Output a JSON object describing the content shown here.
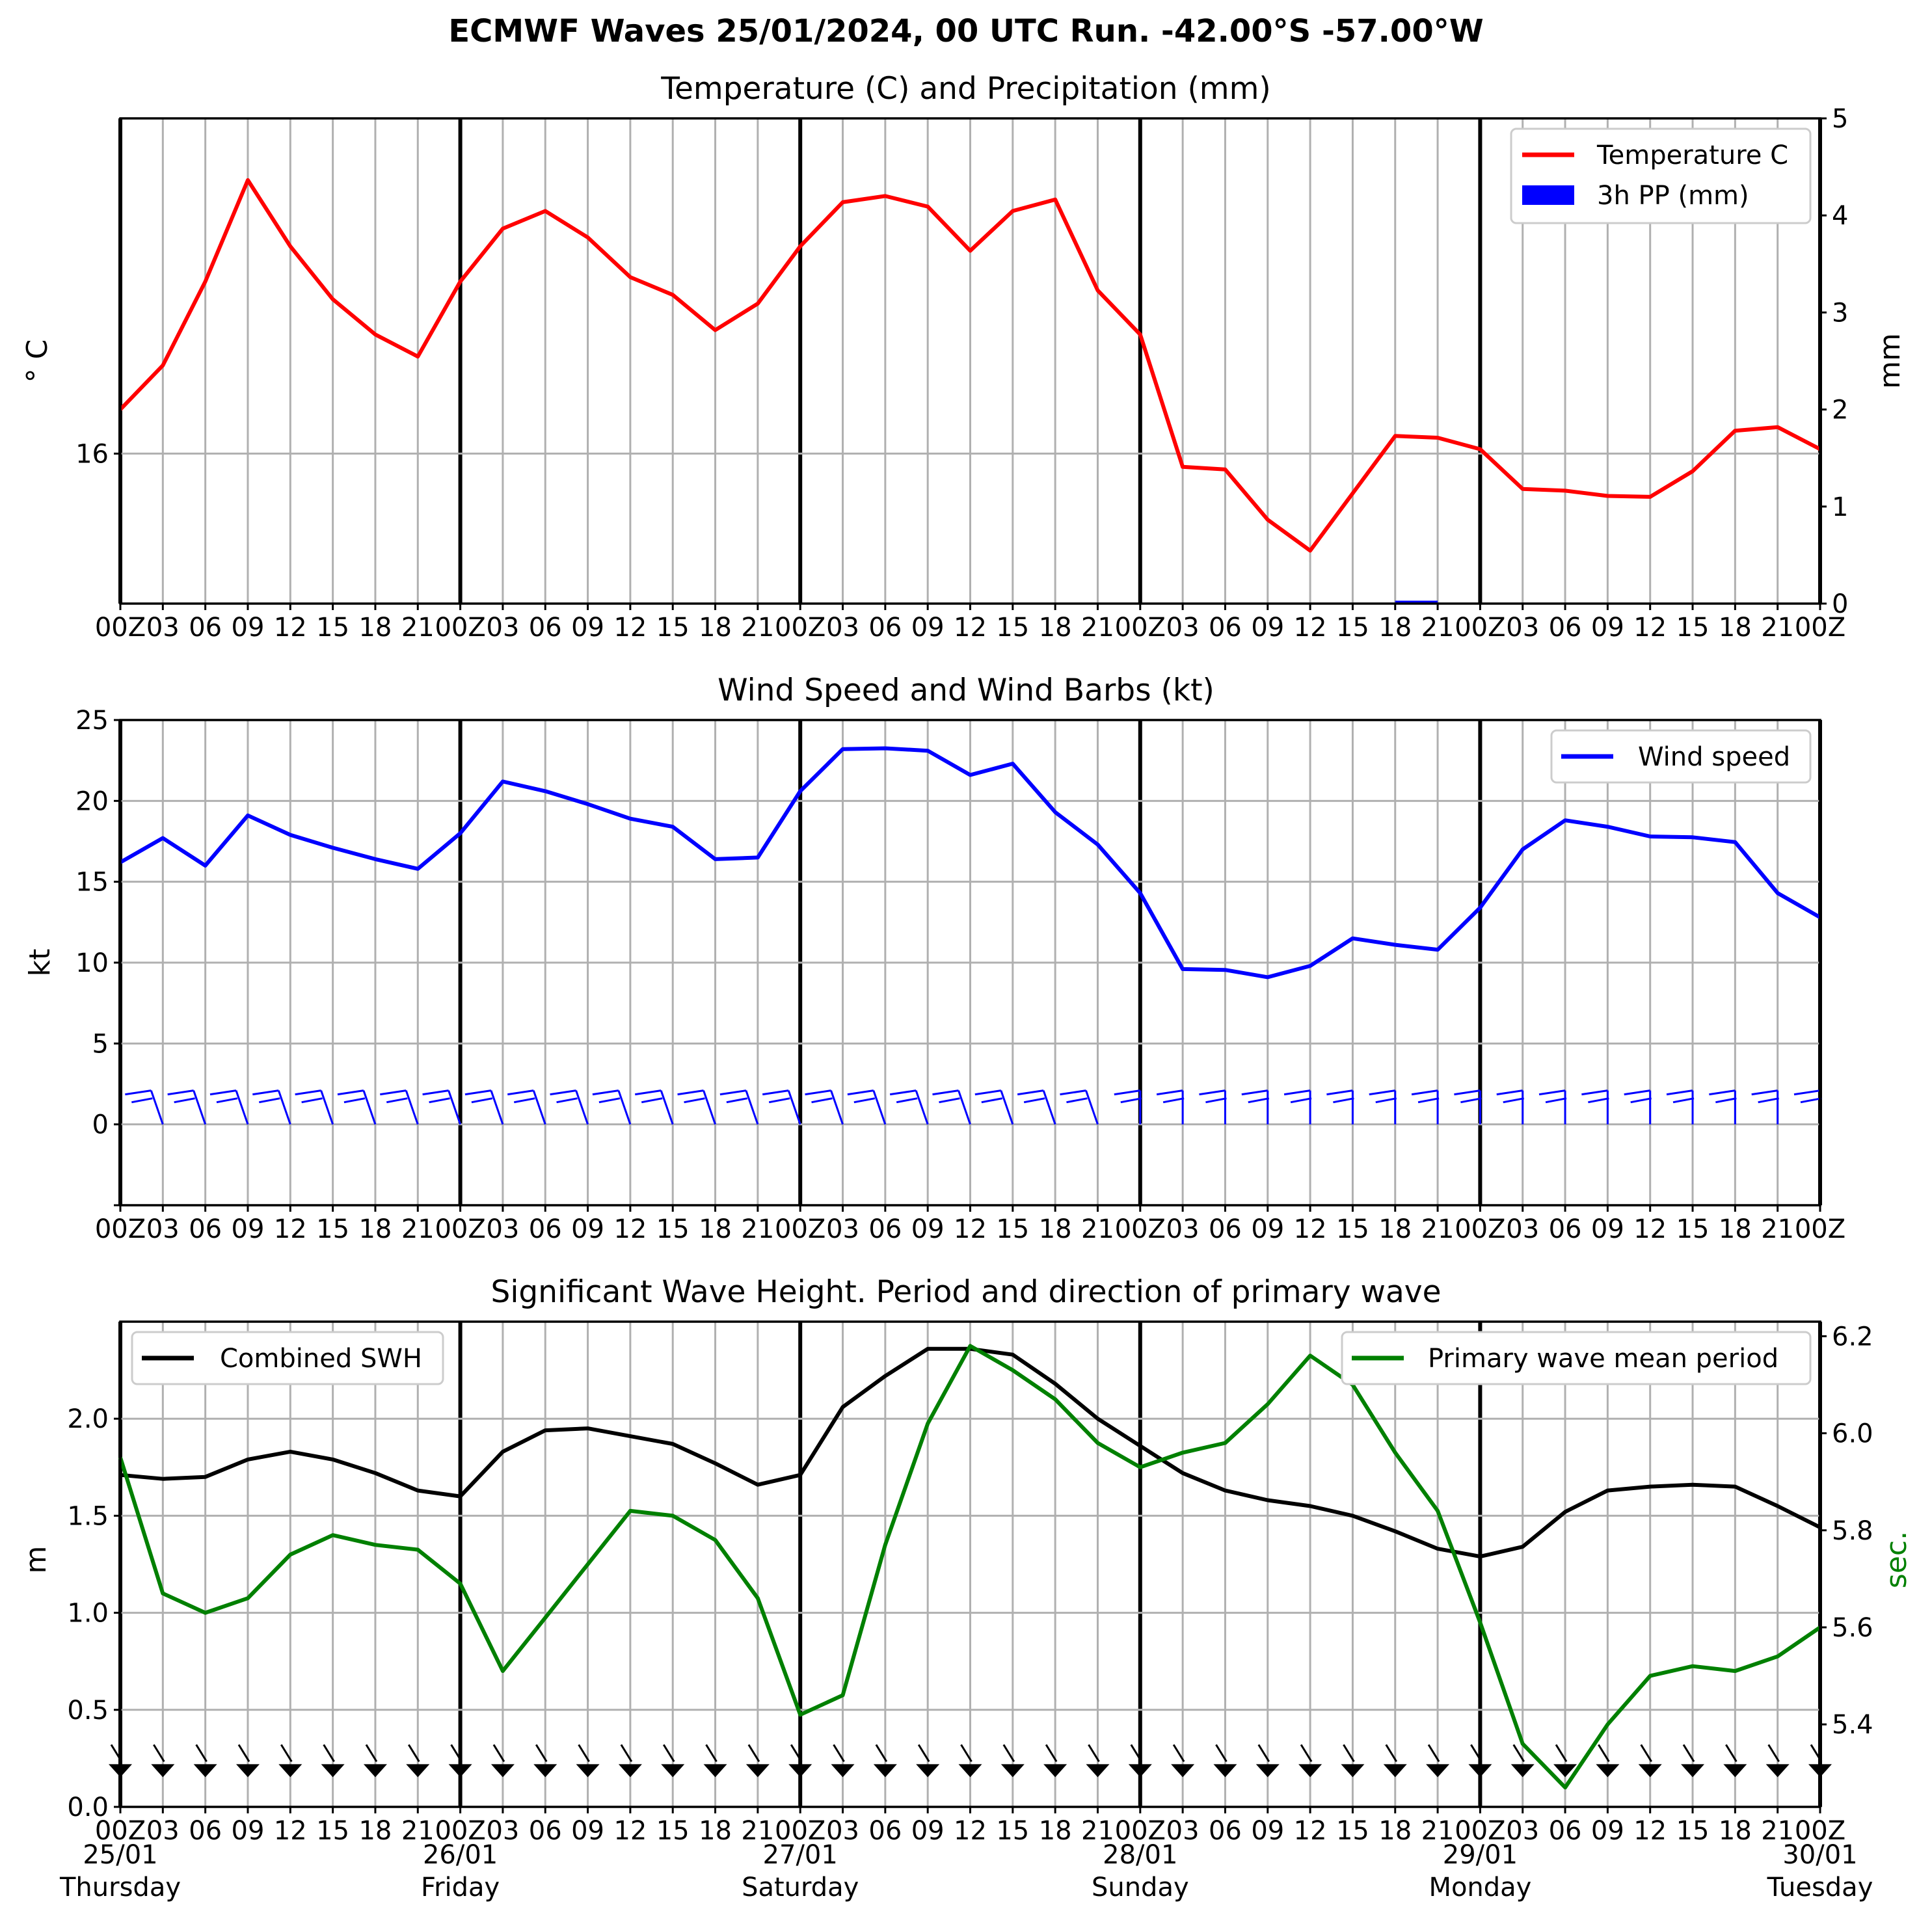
{
  "figure": {
    "title": "ECMWF Waves 25/01/2024, 00 UTC Run. -42.00°S -57.00°W"
  },
  "hour_ticks": [
    "00Z",
    "03",
    "06",
    "09",
    "12",
    "15",
    "18",
    "21",
    "00Z",
    "03",
    "06",
    "09",
    "12",
    "15",
    "18",
    "21",
    "00Z",
    "03",
    "06",
    "09",
    "12",
    "15",
    "18",
    "21",
    "00Z",
    "03",
    "06",
    "09",
    "12",
    "15",
    "18",
    "21",
    "00Z",
    "03",
    "06",
    "09",
    "12",
    "15",
    "18",
    "21",
    "00Z"
  ],
  "day_labels": [
    {
      "date": "25/01",
      "day": "Thursday"
    },
    {
      "date": "26/01",
      "day": "Friday"
    },
    {
      "date": "27/01",
      "day": "Saturday"
    },
    {
      "date": "28/01",
      "day": "Sunday"
    },
    {
      "date": "29/01",
      "day": "Monday"
    },
    {
      "date": "30/01",
      "day": "Tuesday"
    }
  ],
  "panels": {
    "temp": {
      "title": "Temperature (C) and Precipitation (mm)",
      "ylabel": "° C",
      "y2label": "mm",
      "legend": [
        "Temperature C",
        "3h PP (mm)"
      ]
    },
    "wind": {
      "title": "Wind Speed and Wind Barbs (kt)",
      "ylabel": "kt",
      "legend": [
        "Wind speed"
      ]
    },
    "wave": {
      "title": "Significant Wave Height. Period and direction of primary wave",
      "ylabel": "m",
      "y2label": "sec.",
      "legend_left": [
        "Combined SWH"
      ],
      "legend_right": [
        "Primary wave mean period"
      ]
    }
  },
  "colors": {
    "temperature": "#ff0000",
    "precip": "#0000ff",
    "wind": "#0000ff",
    "swh": "#000000",
    "period": "#008000"
  },
  "chart_data": [
    {
      "type": "line",
      "title": "Temperature (C) and Precipitation (mm)",
      "x_hours": [
        0,
        3,
        6,
        9,
        12,
        15,
        18,
        21,
        24,
        27,
        30,
        33,
        36,
        39,
        42,
        45,
        48,
        51,
        54,
        57,
        60,
        63,
        66,
        69,
        72,
        75,
        78,
        81,
        84,
        87,
        90,
        93,
        96,
        99,
        102,
        105,
        108,
        111,
        114,
        117,
        120
      ],
      "ylabel": "° C",
      "y_ticks": [
        16
      ],
      "ylim": [
        14.3,
        19.8
      ],
      "series": [
        {
          "name": "Temperature C",
          "axis": "left",
          "values": [
            16.5,
            17.0,
            17.95,
            19.1,
            18.35,
            17.75,
            17.35,
            17.1,
            17.95,
            18.55,
            18.75,
            18.45,
            18.0,
            17.8,
            17.4,
            17.7,
            18.35,
            18.85,
            18.92,
            18.8,
            18.3,
            18.75,
            18.88,
            17.85,
            17.35,
            15.85,
            15.82,
            15.25,
            14.9,
            15.55,
            16.2,
            16.18,
            16.05,
            15.6,
            15.58,
            15.52,
            15.51,
            15.8,
            16.26,
            16.3,
            16.05
          ]
        },
        {
          "name": "3h PP (mm)",
          "axis": "right",
          "type": "bar",
          "values": [
            0,
            0,
            0,
            0,
            0,
            0,
            0,
            0,
            0,
            0,
            0,
            0,
            0,
            0,
            0,
            0,
            0,
            0,
            0,
            0,
            0,
            0,
            0,
            0,
            0,
            0.01,
            0,
            0,
            0,
            0,
            0.03,
            0,
            0,
            0,
            0,
            0,
            0,
            0,
            0,
            0,
            0
          ]
        }
      ],
      "y2label": "mm",
      "y2lim": [
        0,
        5
      ],
      "y2_ticks": [
        0,
        1,
        2,
        3,
        4,
        5
      ]
    },
    {
      "type": "line",
      "title": "Wind Speed and Wind Barbs (kt)",
      "x_hours": [
        0,
        3,
        6,
        9,
        12,
        15,
        18,
        21,
        24,
        27,
        30,
        33,
        36,
        39,
        42,
        45,
        48,
        51,
        54,
        57,
        60,
        63,
        66,
        69,
        72,
        75,
        78,
        81,
        84,
        87,
        90,
        93,
        96,
        99,
        102,
        105,
        108,
        111,
        114,
        117,
        120
      ],
      "ylabel": "kt",
      "ylim": [
        -5,
        25
      ],
      "y_ticks": [
        0,
        5,
        10,
        15,
        20,
        25
      ],
      "series": [
        {
          "name": "Wind speed",
          "values": [
            16.2,
            17.7,
            16.0,
            19.1,
            17.9,
            17.1,
            16.4,
            15.8,
            18.0,
            21.2,
            20.6,
            19.8,
            18.9,
            18.4,
            16.4,
            16.5,
            20.6,
            23.2,
            23.25,
            23.1,
            21.6,
            22.3,
            19.3,
            17.3,
            14.3,
            9.6,
            9.55,
            9.1,
            9.8,
            11.5,
            11.1,
            10.8,
            13.4,
            17.0,
            18.8,
            18.4,
            17.8,
            17.75,
            17.45,
            14.3,
            12.8
          ]
        }
      ],
      "barbs": {
        "y": 0,
        "count": 41
      }
    },
    {
      "type": "line",
      "title": "Significant Wave Height. Period and direction of primary wave",
      "x_hours": [
        0,
        3,
        6,
        9,
        12,
        15,
        18,
        21,
        24,
        27,
        30,
        33,
        36,
        39,
        42,
        45,
        48,
        51,
        54,
        57,
        60,
        63,
        66,
        69,
        72,
        75,
        78,
        81,
        84,
        87,
        90,
        93,
        96,
        99,
        102,
        105,
        108,
        111,
        114,
        117,
        120
      ],
      "ylabel": "m",
      "ylim": [
        0,
        2.5
      ],
      "y_ticks": [
        0.0,
        0.5,
        1.0,
        1.5,
        2.0
      ],
      "series": [
        {
          "name": "Combined SWH",
          "axis": "left",
          "values": [
            1.71,
            1.69,
            1.7,
            1.79,
            1.83,
            1.79,
            1.72,
            1.63,
            1.6,
            1.83,
            1.94,
            1.95,
            1.91,
            1.87,
            1.77,
            1.66,
            1.71,
            2.06,
            2.22,
            2.36,
            2.36,
            2.33,
            2.18,
            2.0,
            1.86,
            1.72,
            1.63,
            1.58,
            1.55,
            1.5,
            1.42,
            1.33,
            1.29,
            1.34,
            1.52,
            1.63,
            1.65,
            1.66,
            1.65,
            1.55,
            1.44
          ]
        },
        {
          "name": "Primary wave mean period",
          "axis": "right",
          "values": [
            5.95,
            5.67,
            5.63,
            5.66,
            5.75,
            5.79,
            5.77,
            5.76,
            5.69,
            5.51,
            5.62,
            5.73,
            5.84,
            5.83,
            5.78,
            5.66,
            5.42,
            5.46,
            5.77,
            6.02,
            6.18,
            6.13,
            6.07,
            5.98,
            5.93,
            5.96,
            5.98,
            6.06,
            6.16,
            6.1,
            5.96,
            5.84,
            5.61,
            5.36,
            5.27,
            5.4,
            5.5,
            5.52,
            5.51,
            5.54,
            5.6
          ]
        }
      ],
      "y2label": "sec.",
      "y2lim": [
        5.23,
        6.23
      ],
      "y2_ticks": [
        5.4,
        5.6,
        5.8,
        6.0,
        6.2
      ],
      "direction_arrows": {
        "y": 0.22,
        "count": 41
      }
    }
  ]
}
